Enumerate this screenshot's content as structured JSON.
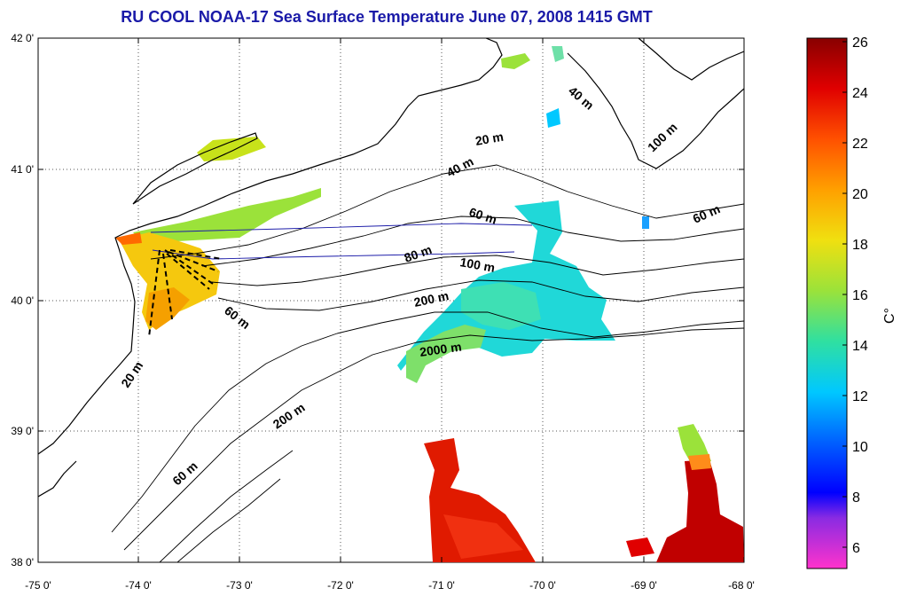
{
  "title": "RU COOL  NOAA-17 Sea Surface Temperature June 07, 2008 1415 GMT",
  "axes": {
    "x_ticks": [
      "-75 0'",
      "-74 0'",
      "-73 0'",
      "-72 0'",
      "-71 0'",
      "-70 0'",
      "-69 0'",
      "-68 0'"
    ],
    "y_ticks": [
      "42 0'",
      "41 0'",
      "40 0'",
      "39 0'",
      "38 0'"
    ],
    "lon_range": [
      -75,
      -68
    ],
    "lat_range": [
      38,
      42
    ],
    "grid": "dotted"
  },
  "colorbar": {
    "label": "C°",
    "ticks": [
      "26",
      "24",
      "22",
      "20",
      "18",
      "16",
      "14",
      "12",
      "10",
      "8",
      "6"
    ],
    "range": [
      5,
      26
    ],
    "colors": {
      "c5": "#ff33cc",
      "c7": "#8a2be2",
      "c8": "#0000ff",
      "c10": "#0060ff",
      "c12": "#00c8ff",
      "c14": "#30e0a0",
      "c16": "#9be23a",
      "c18": "#f0e010",
      "c20": "#ffa000",
      "c22": "#ff5000",
      "c24": "#e00000",
      "c26": "#880000"
    }
  },
  "contour_labels": [
    {
      "text": "20 m"
    },
    {
      "text": "40 m"
    },
    {
      "text": "60 m"
    },
    {
      "text": "80 m"
    },
    {
      "text": "100 m"
    },
    {
      "text": "200 m"
    },
    {
      "text": "2000 m"
    },
    {
      "text": "40 m"
    },
    {
      "text": "100 m"
    },
    {
      "text": "60 m"
    },
    {
      "text": "60 m"
    },
    {
      "text": "20 m"
    },
    {
      "text": "200 m"
    },
    {
      "text": "60 m"
    }
  ]
}
